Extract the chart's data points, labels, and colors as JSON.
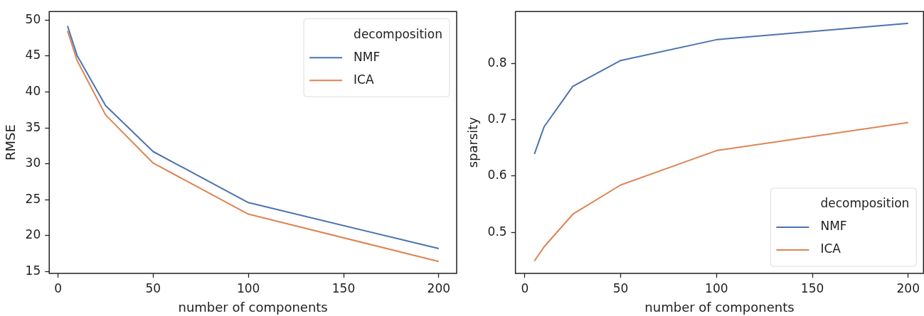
{
  "chart_data": [
    {
      "type": "line",
      "xlabel": "number of components",
      "ylabel": "RMSE",
      "legend_title": "decomposition",
      "legend": "top right",
      "grid": false,
      "marker": "none",
      "line_style": "solid",
      "x": [
        5,
        10,
        25,
        50,
        100,
        200
      ],
      "xlim": [
        -4.6,
        209.4
      ],
      "xticks": [
        0,
        50,
        100,
        150,
        200
      ],
      "ylim": [
        14.75,
        51.2
      ],
      "yticks": [
        15,
        20,
        25,
        30,
        35,
        40,
        45,
        50
      ],
      "series": [
        {
          "name": "NMF",
          "color": "#4c72b0",
          "values": [
            49.2,
            45.1,
            38.1,
            31.7,
            24.6,
            18.2
          ]
        },
        {
          "name": "ICA",
          "color": "#dd8452",
          "values": [
            48.5,
            44.4,
            36.8,
            30.1,
            23.0,
            16.4
          ]
        }
      ]
    },
    {
      "type": "line",
      "xlabel": "number of components",
      "ylabel": "sparsity",
      "legend_title": "decomposition",
      "legend": "bottom right",
      "grid": false,
      "marker": "none",
      "line_style": "solid",
      "x": [
        5,
        10,
        25,
        50,
        100,
        200
      ],
      "xlim": [
        -4.9,
        208
      ],
      "xticks": [
        0,
        50,
        100,
        150,
        200
      ],
      "ylim": [
        0.427,
        0.892
      ],
      "yticks": [
        0.5,
        0.6,
        0.7,
        0.8
      ],
      "series": [
        {
          "name": "NMF",
          "color": "#4c72b0",
          "values": [
            0.639,
            0.687,
            0.759,
            0.805,
            0.842,
            0.871
          ]
        },
        {
          "name": "ICA",
          "color": "#dd8452",
          "values": [
            0.449,
            0.474,
            0.532,
            0.584,
            0.645,
            0.695
          ]
        }
      ]
    }
  ]
}
